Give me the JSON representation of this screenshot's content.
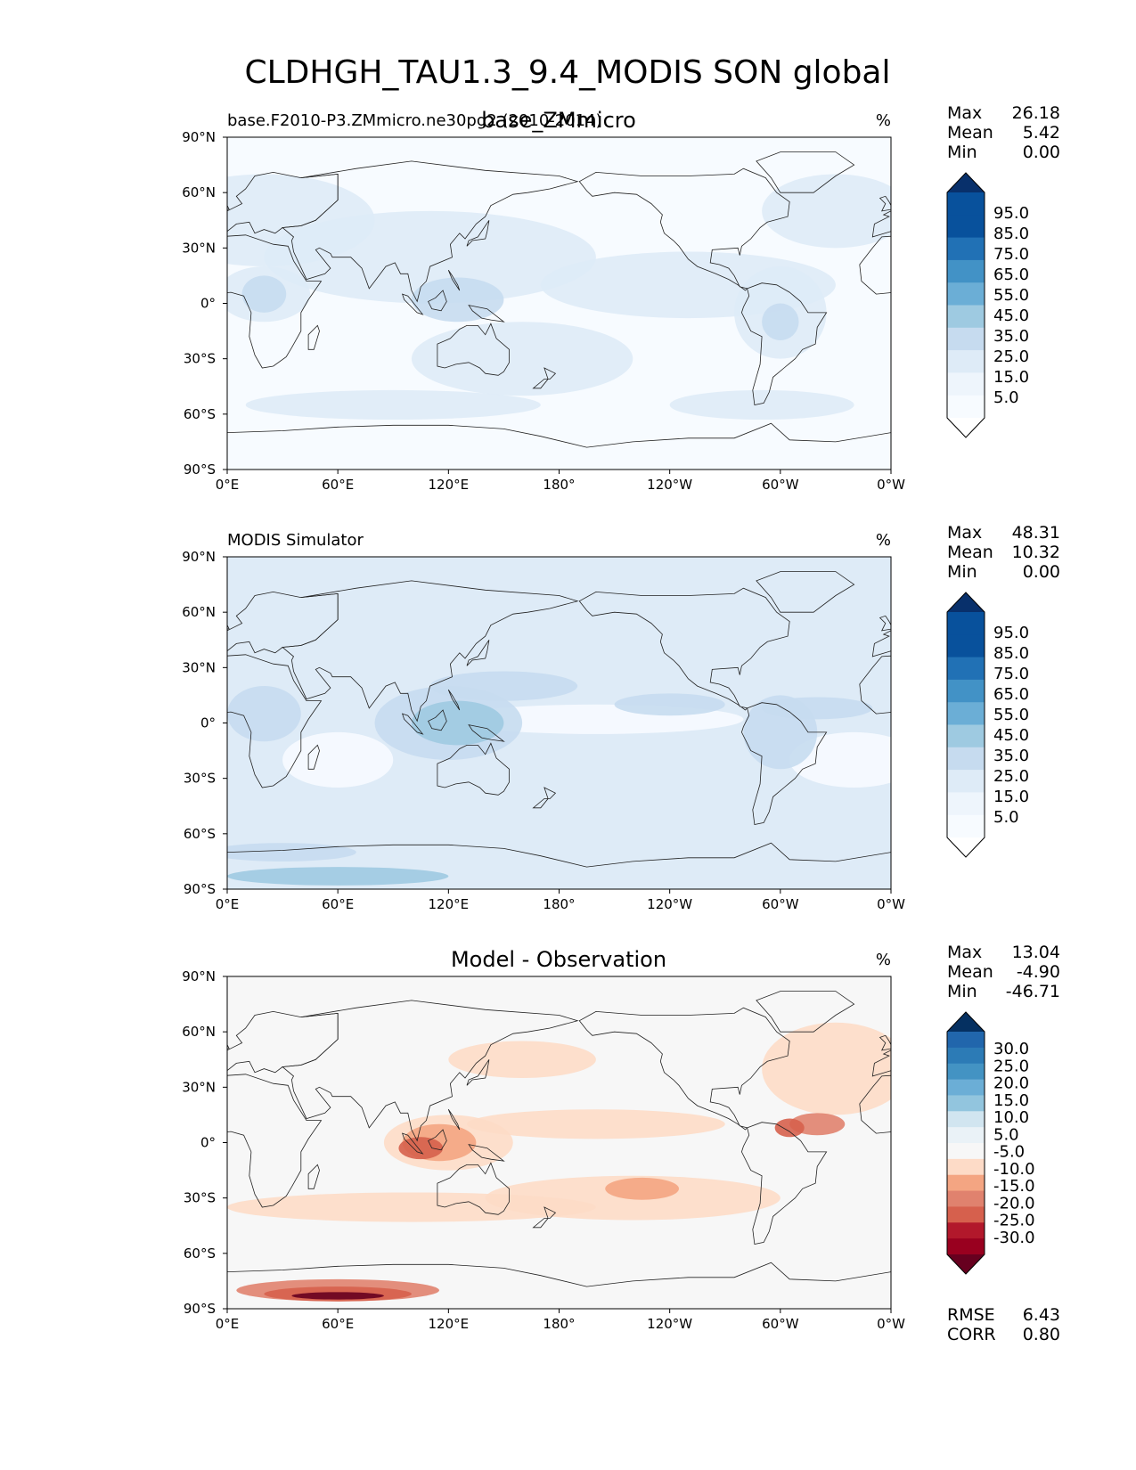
{
  "figure_title": "CLDHGH_TAU1.3_9.4_MODIS SON global",
  "colors": {
    "sequential": [
      "#f7fbff",
      "#deebf7",
      "#c6dbef",
      "#9ecae1",
      "#6baed6",
      "#4292c6",
      "#2171b5",
      "#08519c",
      "#08306b"
    ],
    "diverging_neg": [
      "#fddbc7",
      "#f4a582",
      "#e0826e",
      "#d6604d",
      "#b2182b",
      "#67001f"
    ],
    "diverging_pos": [
      "#d1e5f0",
      "#92c5de",
      "#4393c3",
      "#2166ac",
      "#053061"
    ],
    "neutral": "#f7f7f7",
    "coast": "#222222"
  },
  "chart_data": [
    {
      "type": "heatmap",
      "title": "base_ZMmicro",
      "subtitle_left": "base.F2010-P3.ZMmicro.ne30pg2 (2010-2014)",
      "units": "%",
      "stats": {
        "Max": "26.18",
        "Mean": "5.42",
        "Min": "0.00"
      },
      "colorbar_ticks": [
        "95.0",
        "85.0",
        "75.0",
        "65.0",
        "55.0",
        "45.0",
        "35.0",
        "25.0",
        "15.0",
        "5.0"
      ],
      "colormap": "Blues",
      "xticks": [
        "0°E",
        "60°E",
        "120°E",
        "180°",
        "120°W",
        "60°W",
        "0°W"
      ],
      "yticks": [
        "90°N",
        "60°N",
        "30°N",
        "0°",
        "30°S",
        "60°S",
        "90°S"
      ],
      "xlim": [
        0,
        360
      ],
      "ylim": [
        -90,
        90
      ]
    },
    {
      "type": "heatmap",
      "title": "",
      "subtitle_left": "MODIS Simulator",
      "units": "%",
      "stats": {
        "Max": "48.31",
        "Mean": "10.32",
        "Min": "0.00"
      },
      "colorbar_ticks": [
        "95.0",
        "85.0",
        "75.0",
        "65.0",
        "55.0",
        "45.0",
        "35.0",
        "25.0",
        "15.0",
        "5.0"
      ],
      "colormap": "Blues",
      "xticks": [
        "0°E",
        "60°E",
        "120°E",
        "180°",
        "120°W",
        "60°W",
        "0°W"
      ],
      "yticks": [
        "90°N",
        "60°N",
        "30°N",
        "0°",
        "30°S",
        "60°S",
        "90°S"
      ],
      "xlim": [
        0,
        360
      ],
      "ylim": [
        -90,
        90
      ]
    },
    {
      "type": "heatmap",
      "title": "Model - Observation",
      "subtitle_left": "",
      "units": "%",
      "stats": {
        "Max": "13.04",
        "Mean": "-4.90",
        "Min": "-46.71"
      },
      "extra_stats": {
        "RMSE": "6.43",
        "CORR": "0.80"
      },
      "colorbar_ticks": [
        "30.0",
        "25.0",
        "20.0",
        "15.0",
        "10.0",
        "5.0",
        "-5.0",
        "-10.0",
        "-15.0",
        "-20.0",
        "-25.0",
        "-30.0"
      ],
      "colormap": "RdBu_r",
      "xticks": [
        "0°E",
        "60°E",
        "120°E",
        "180°",
        "120°W",
        "60°W",
        "0°W"
      ],
      "yticks": [
        "90°N",
        "60°N",
        "30°N",
        "0°",
        "30°S",
        "60°S",
        "90°S"
      ],
      "xlim": [
        0,
        360
      ],
      "ylim": [
        -90,
        90
      ]
    }
  ]
}
